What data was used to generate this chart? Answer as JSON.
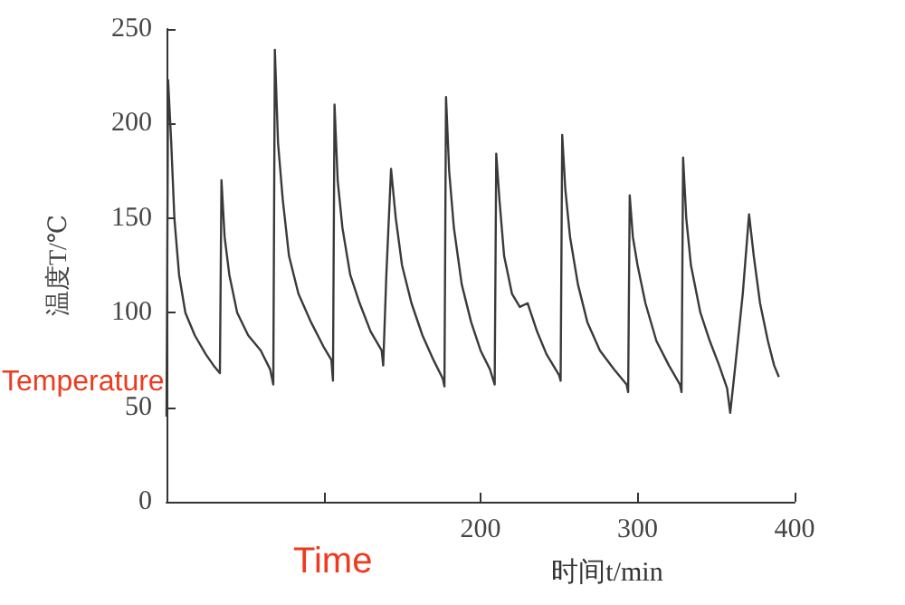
{
  "chart_data": {
    "type": "line",
    "xlabel": "时间t/min",
    "ylabel": "温度T/℃",
    "annotations": [
      "Temperature",
      "Time"
    ],
    "xlim": [
      0,
      400
    ],
    "xticks": [
      {
        "value": 0,
        "label": null
      },
      {
        "value": 100,
        "label": null
      },
      200,
      300,
      400
    ],
    "ylim": [
      0,
      250
    ],
    "yticks": [
      0,
      50,
      100,
      150,
      200,
      250
    ],
    "grid": false,
    "marker": "none",
    "line_style": "solid",
    "x": [
      0,
      0.5,
      1,
      3,
      5,
      8,
      12,
      18,
      25,
      30,
      34,
      35,
      37,
      40,
      45,
      52,
      60,
      66,
      68,
      69,
      71,
      74,
      78,
      84,
      92,
      100,
      105,
      106,
      107,
      109,
      112,
      117,
      123,
      130,
      137,
      138,
      140,
      143,
      146,
      150,
      156,
      163,
      170,
      176,
      177,
      178,
      180,
      183,
      188,
      194,
      200,
      206,
      209,
      210,
      212,
      215,
      220,
      225,
      230,
      236,
      242,
      250,
      251,
      252,
      254,
      257,
      262,
      268,
      276,
      285,
      293,
      294,
      295,
      297,
      300,
      305,
      312,
      320,
      327,
      328,
      329,
      331,
      334,
      340,
      346,
      352,
      357,
      359,
      362,
      367,
      371,
      374,
      378,
      383,
      387,
      390
    ],
    "series": [
      {
        "color": "#3a3a3a",
        "values": [
          45,
          130,
          223,
          190,
          150,
          120,
          100,
          88,
          78,
          72,
          68,
          170,
          140,
          120,
          100,
          88,
          80,
          70,
          62,
          239,
          190,
          160,
          130,
          110,
          95,
          82,
          75,
          64,
          210,
          170,
          145,
          120,
          105,
          90,
          80,
          72,
          120,
          176,
          150,
          125,
          105,
          88,
          75,
          65,
          61,
          214,
          175,
          145,
          115,
          95,
          80,
          70,
          62,
          184,
          160,
          130,
          110,
          103,
          105,
          90,
          78,
          67,
          64,
          194,
          165,
          140,
          115,
          95,
          80,
          70,
          62,
          58,
          162,
          140,
          125,
          105,
          85,
          72,
          62,
          58,
          182,
          150,
          125,
          100,
          85,
          72,
          60,
          47,
          70,
          110,
          152,
          130,
          105,
          85,
          72,
          66
        ]
      }
    ]
  }
}
